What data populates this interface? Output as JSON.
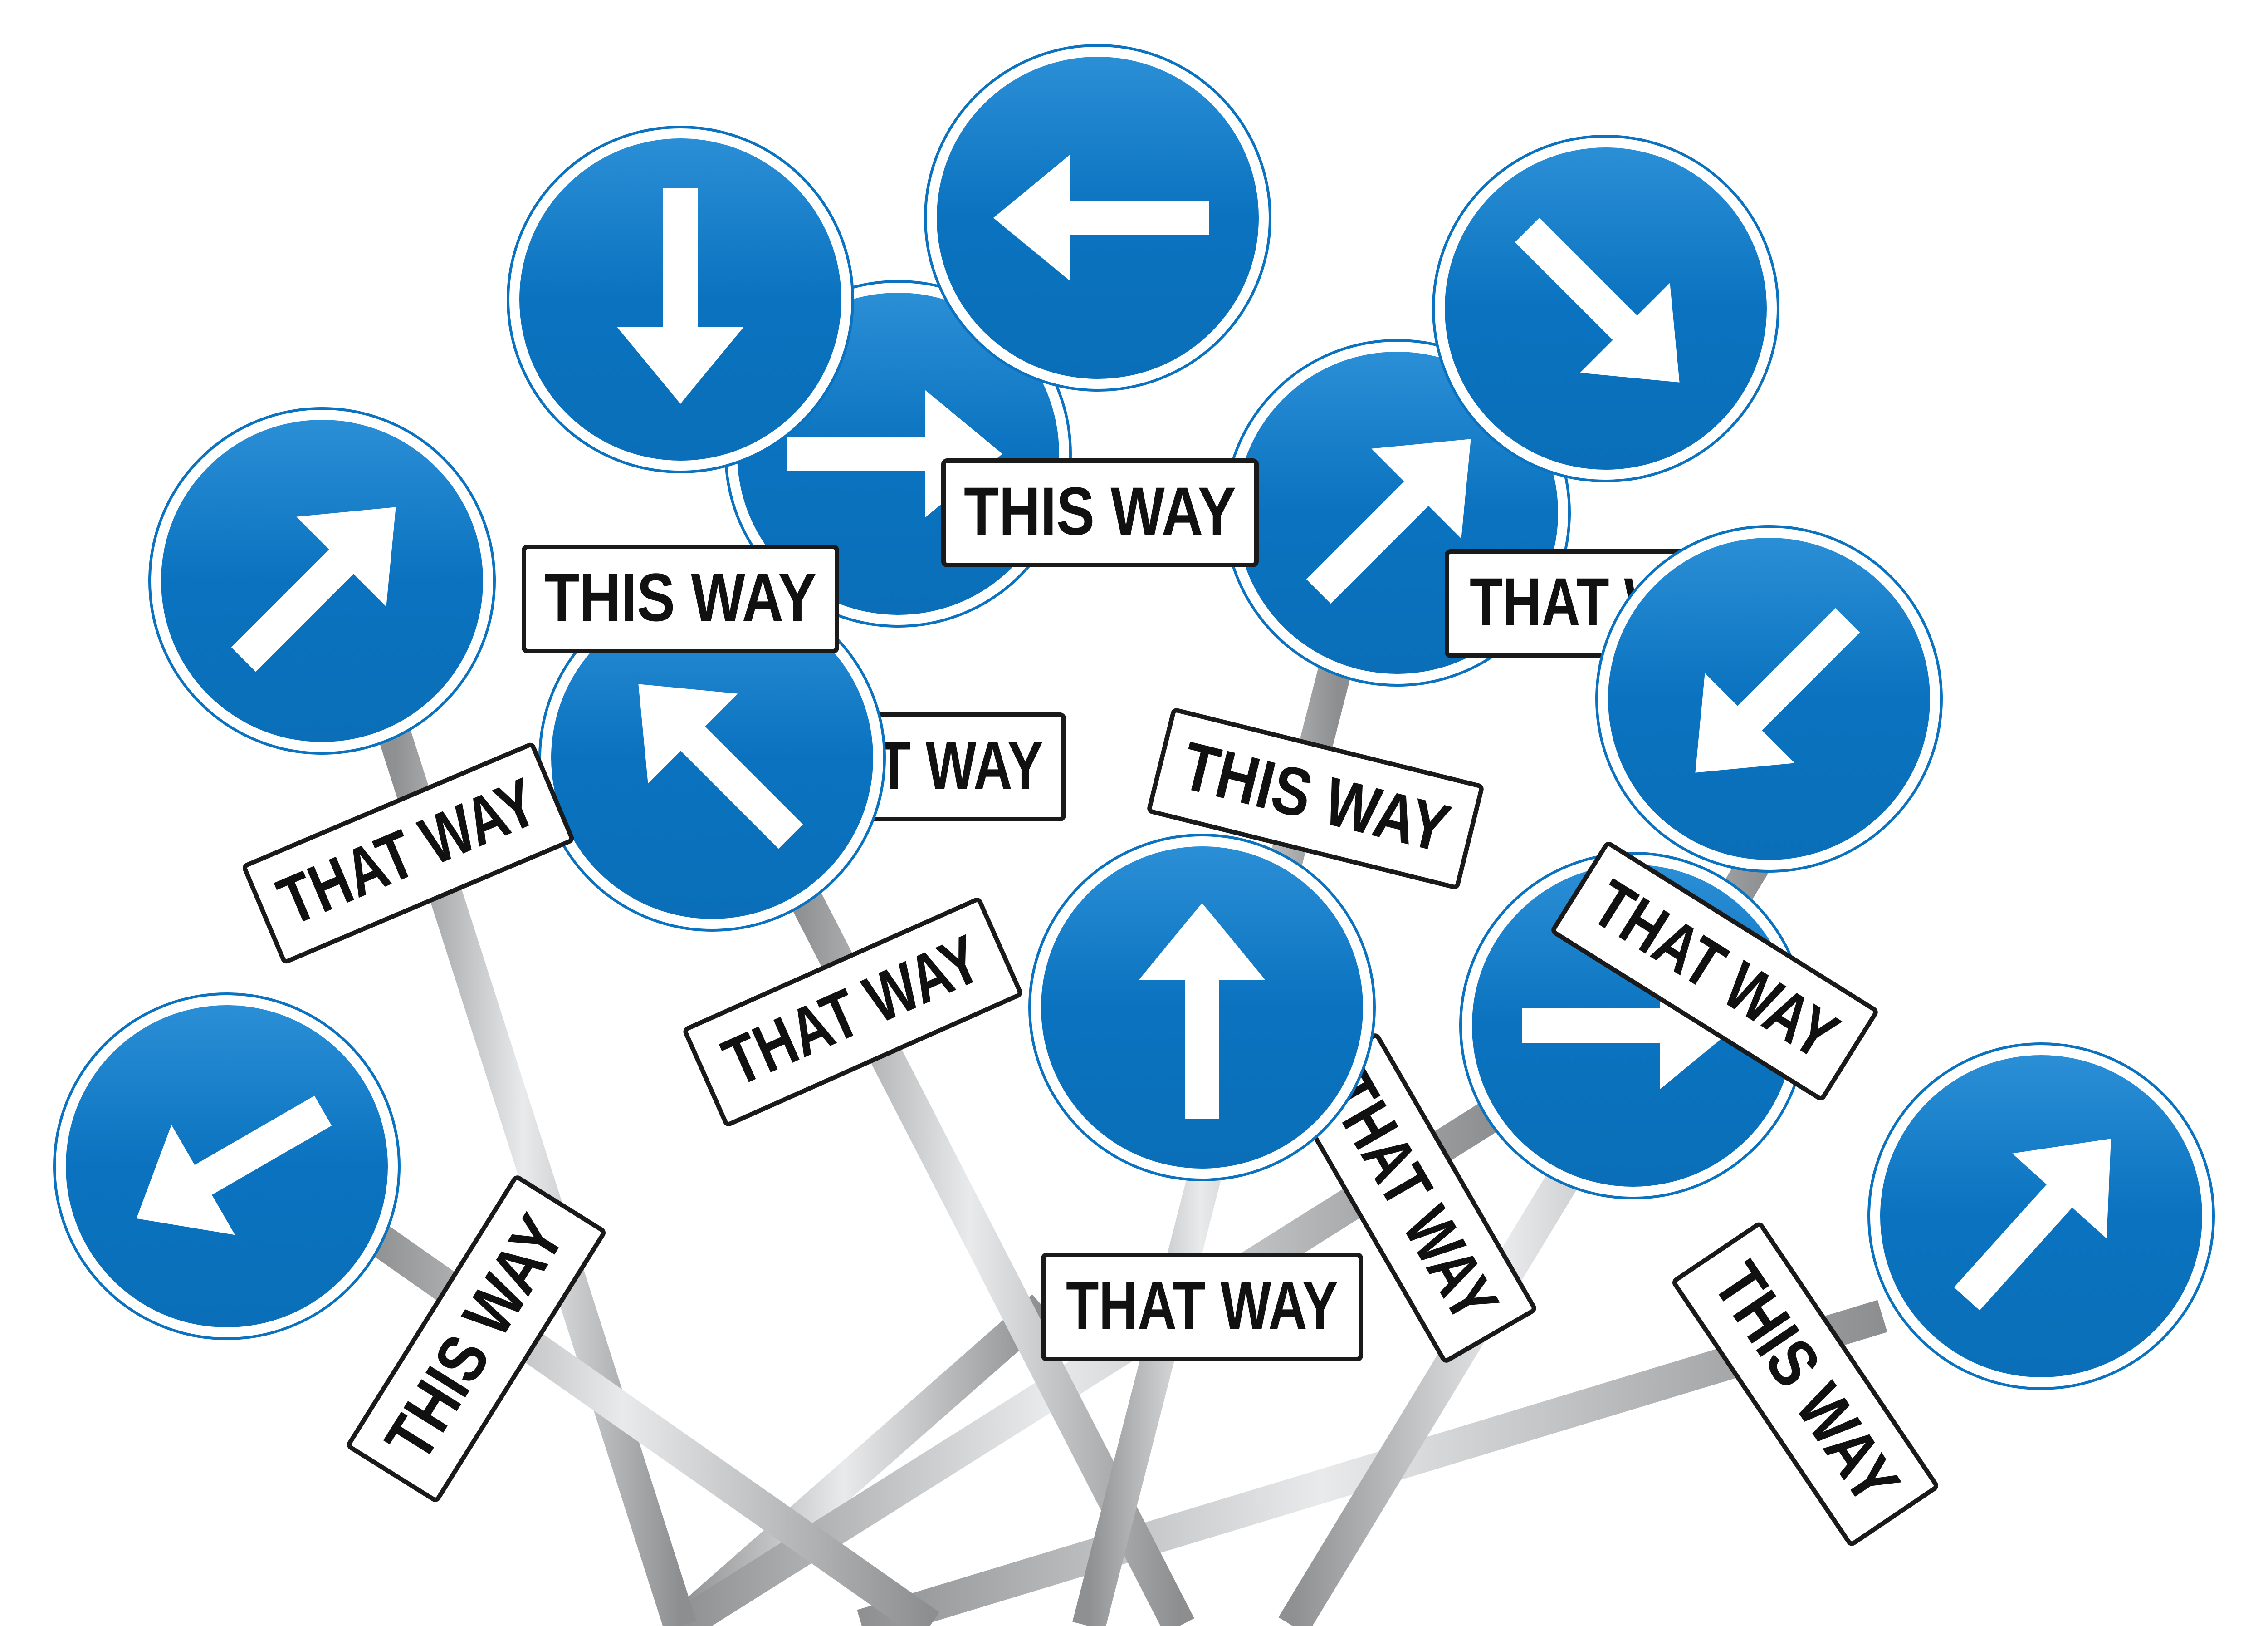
{
  "colors": {
    "sign_blue": "#0a72bf",
    "sign_rim": "#ffffff",
    "arrow": "#ffffff",
    "pole": "#b9bbbd",
    "plate_fill": "#ffffff",
    "plate_border": "#1a1a1a",
    "text": "#111111",
    "background": "#ffffff"
  },
  "labels": {
    "this_way": "THIS WAY",
    "that_way": "THAT WAY"
  },
  "arrow_signs": [
    {
      "id": "arrow-sign-left-top-center",
      "direction": "left"
    },
    {
      "id": "arrow-sign-down",
      "direction": "down"
    },
    {
      "id": "arrow-sign-right-behind",
      "direction": "right"
    },
    {
      "id": "arrow-sign-down-right",
      "direction": "down-right"
    },
    {
      "id": "arrow-sign-up-right-center",
      "direction": "up-right"
    },
    {
      "id": "arrow-sign-up-right-left",
      "direction": "up-right"
    },
    {
      "id": "arrow-sign-up-left-partial",
      "direction": "up-left"
    },
    {
      "id": "arrow-sign-down-left",
      "direction": "down-left"
    },
    {
      "id": "arrow-sign-up",
      "direction": "up"
    },
    {
      "id": "arrow-sign-right-partial",
      "direction": "right"
    },
    {
      "id": "arrow-sign-down-left-bottom",
      "direction": "down-left"
    },
    {
      "id": "arrow-sign-up-right-bottom",
      "direction": "up-right"
    }
  ]
}
